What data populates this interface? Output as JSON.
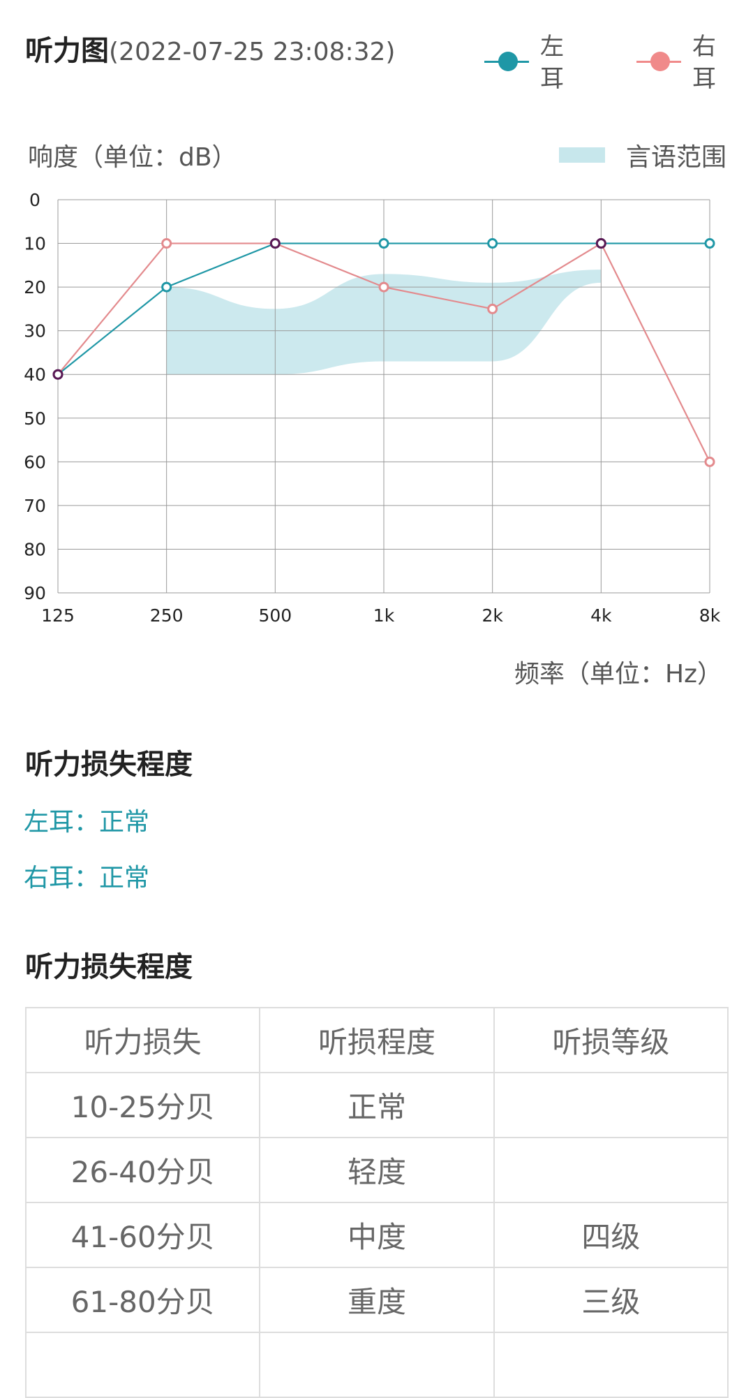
{
  "header": {
    "title": "听力图",
    "timestamp": "(2022-07-25 23:08:32)"
  },
  "legend": {
    "left": {
      "label": "左耳",
      "color": "#1f97a6"
    },
    "right": {
      "label": "右耳",
      "color": "#f08a8a"
    },
    "speech": {
      "label": "言语范围",
      "color": "#c7e7ec"
    }
  },
  "chart_data": {
    "type": "line",
    "ylabel": "响度（单位：dB）",
    "xlabel": "频率（单位：Hz）",
    "categories": [
      "125",
      "250",
      "500",
      "1k",
      "2k",
      "4k",
      "8k"
    ],
    "yticks": [
      "0",
      "10",
      "20",
      "30",
      "40",
      "50",
      "60",
      "70",
      "80",
      "90"
    ],
    "ylim": [
      0,
      90
    ],
    "y_inverted": true,
    "grid": true,
    "series": [
      {
        "name": "左耳",
        "color": "#1f97a6",
        "values": [
          40,
          20,
          10,
          10,
          10,
          10,
          10
        ]
      },
      {
        "name": "右耳",
        "color": "#e38a8d",
        "values": [
          40,
          10,
          10,
          20,
          25,
          10,
          60
        ]
      }
    ],
    "overlap_point_color": "#5a1a55",
    "speech_range": {
      "name": "言语范围",
      "upper": [
        [
          250,
          20
        ],
        [
          500,
          25
        ],
        [
          1000,
          17
        ],
        [
          2000,
          19
        ],
        [
          4000,
          16
        ]
      ],
      "lower": [
        [
          250,
          40
        ],
        [
          500,
          40
        ],
        [
          1000,
          37
        ],
        [
          2000,
          37
        ],
        [
          4000,
          19
        ]
      ]
    }
  },
  "loss_section": {
    "title": "听力损失程度",
    "left_ear": "左耳：正常",
    "right_ear": "右耳：正常"
  },
  "table_section": {
    "title": "听力损失程度",
    "headers": [
      "听力损失",
      "听损程度",
      "听损等级"
    ],
    "rows": [
      [
        "10-25分贝",
        "正常",
        ""
      ],
      [
        "26-40分贝",
        "轻度",
        ""
      ],
      [
        "41-60分贝",
        "中度",
        "四级"
      ],
      [
        "61-80分贝",
        "重度",
        "三级"
      ],
      [
        "",
        "",
        ""
      ]
    ]
  }
}
